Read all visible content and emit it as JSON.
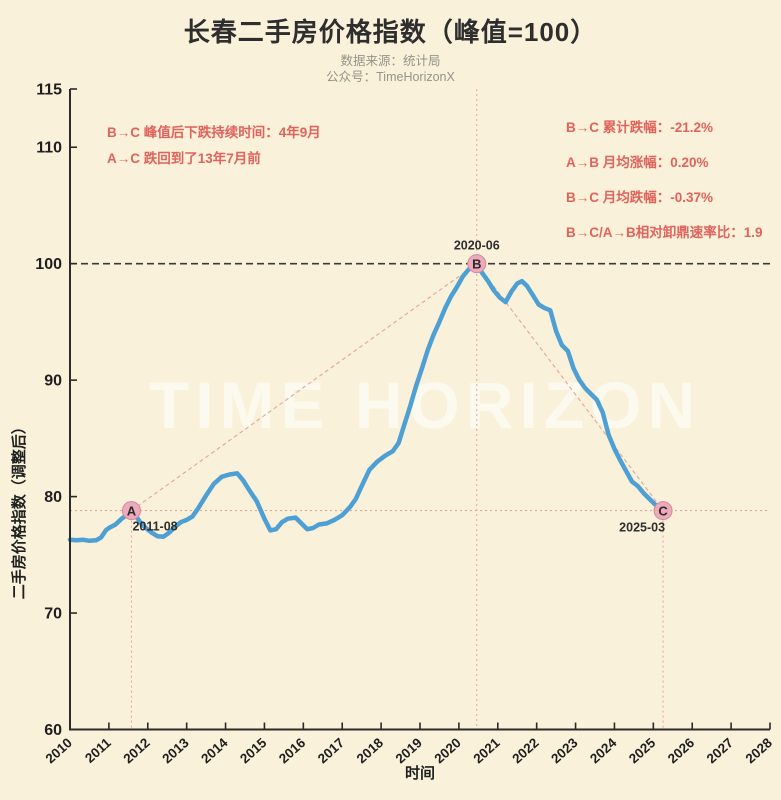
{
  "page": {
    "background": "#f9f1d9"
  },
  "header": {
    "title": "长春二手房价格指数（峰值=100）",
    "source_line": "数据来源：统计局",
    "account_line": "公众号：TimeHorizonX"
  },
  "annotations": {
    "left": [
      "B→C 峰值后下跌持续时间：4年9月",
      "A→C 跌回到了13年7月前"
    ],
    "right": [
      "B→C 累计跌幅：-21.2%",
      "A→B 月均涨幅：0.20%",
      "B→C 月均跌幅：-0.37%",
      "B→C/A→B相对卸鼎速率比：1.9"
    ]
  },
  "watermark": "TIME HORIZON",
  "colors": {
    "line": "#4d9fd4",
    "marker_fill": "#ecaabb",
    "marker_edge": "#d487a0",
    "reference_dark": "#3a3a3a",
    "reference_pink": "#e5a49c",
    "axis": "#2b2b2b",
    "tick_text": "#1f1f1f",
    "annotation_red": "#e0635c"
  },
  "chart_data": {
    "type": "line",
    "title": "长春二手房价格指数（峰值=100）",
    "xlabel": "时间",
    "ylabel": "二手房价格指数（调整后）",
    "xlim": [
      2010,
      2028
    ],
    "ylim": [
      60,
      115
    ],
    "x_ticks": [
      2010,
      2011,
      2012,
      2013,
      2014,
      2015,
      2016,
      2017,
      2018,
      2019,
      2020,
      2021,
      2022,
      2023,
      2024,
      2025,
      2026,
      2027,
      2028
    ],
    "y_ticks": [
      60,
      70,
      80,
      90,
      100,
      110,
      115
    ],
    "grid": false,
    "legend": "none",
    "series": [
      {
        "name": "二手房价格指数",
        "x": [
          2010.0,
          2010.17,
          2010.33,
          2010.5,
          2010.67,
          2010.8,
          2010.92,
          2011.0,
          2011.17,
          2011.33,
          2011.45,
          2011.58,
          2011.7,
          2011.83,
          2011.95,
          2012.1,
          2012.25,
          2012.4,
          2012.55,
          2012.7,
          2012.85,
          2013.0,
          2013.15,
          2013.3,
          2013.5,
          2013.7,
          2013.9,
          2014.1,
          2014.3,
          2014.45,
          2014.6,
          2014.8,
          2015.0,
          2015.15,
          2015.3,
          2015.45,
          2015.6,
          2015.8,
          2015.95,
          2016.1,
          2016.25,
          2016.4,
          2016.6,
          2016.8,
          2017.0,
          2017.2,
          2017.35,
          2017.5,
          2017.7,
          2017.9,
          2018.1,
          2018.3,
          2018.45,
          2018.6,
          2018.75,
          2018.9,
          2019.05,
          2019.2,
          2019.35,
          2019.5,
          2019.65,
          2019.8,
          2019.95,
          2020.1,
          2020.25,
          2020.46,
          2020.6,
          2020.75,
          2020.9,
          2021.05,
          2021.2,
          2021.35,
          2021.5,
          2021.62,
          2021.75,
          2021.9,
          2022.05,
          2022.2,
          2022.35,
          2022.5,
          2022.65,
          2022.8,
          2022.95,
          2023.1,
          2023.25,
          2023.4,
          2023.55,
          2023.7,
          2023.85,
          2024.0,
          2024.15,
          2024.3,
          2024.45,
          2024.6,
          2024.75,
          2024.9,
          2025.05,
          2025.15,
          2025.25
        ],
        "y": [
          76.3,
          76.25,
          76.3,
          76.2,
          76.25,
          76.5,
          77.1,
          77.3,
          77.6,
          78.1,
          78.4,
          78.8,
          78.3,
          77.7,
          77.3,
          76.9,
          76.6,
          76.55,
          76.9,
          77.4,
          77.8,
          78.0,
          78.3,
          79.0,
          80.1,
          81.1,
          81.7,
          81.9,
          82.0,
          81.4,
          80.6,
          79.6,
          78.1,
          77.1,
          77.2,
          77.8,
          78.1,
          78.2,
          77.7,
          77.2,
          77.3,
          77.6,
          77.7,
          78.0,
          78.4,
          79.1,
          79.8,
          80.9,
          82.3,
          83.0,
          83.5,
          83.9,
          84.6,
          86.2,
          87.8,
          89.5,
          91.0,
          92.6,
          93.9,
          95.0,
          96.2,
          97.2,
          98.0,
          98.9,
          99.5,
          100.0,
          99.2,
          98.5,
          97.7,
          97.1,
          96.7,
          97.6,
          98.3,
          98.5,
          98.1,
          97.3,
          96.5,
          96.2,
          96.0,
          94.2,
          93.0,
          92.5,
          91.0,
          90.0,
          89.3,
          88.8,
          88.3,
          87.2,
          85.3,
          84.1,
          83.1,
          82.2,
          81.3,
          80.9,
          80.3,
          79.8,
          79.3,
          79.0,
          78.8
        ]
      }
    ],
    "markers": [
      {
        "label": "A",
        "date_label": "2011-08",
        "x": 2011.58,
        "y": 78.8,
        "vline": "below",
        "date_pos": "below-right"
      },
      {
        "label": "B",
        "date_label": "2020-06",
        "x": 2020.46,
        "y": 100.0,
        "vline": "full",
        "date_pos": "above"
      },
      {
        "label": "C",
        "date_label": "2025-03",
        "x": 2025.25,
        "y": 78.8,
        "vline": "below",
        "date_pos": "below-left"
      }
    ],
    "reference_lines": [
      {
        "name": "peak-reference-line",
        "y": 100.0,
        "dash": "7,4",
        "width": 1.6,
        "color": "#3a3a3a"
      },
      {
        "name": "trough-reference-line",
        "y": 78.8,
        "dash": "2,3",
        "width": 1.1,
        "color": "#e5a49c"
      }
    ],
    "trend_lines": [
      {
        "name": "trend-a-to-b",
        "from": "A",
        "to": "B"
      },
      {
        "name": "trend-b-to-c",
        "from": "B",
        "to": "C"
      }
    ]
  }
}
